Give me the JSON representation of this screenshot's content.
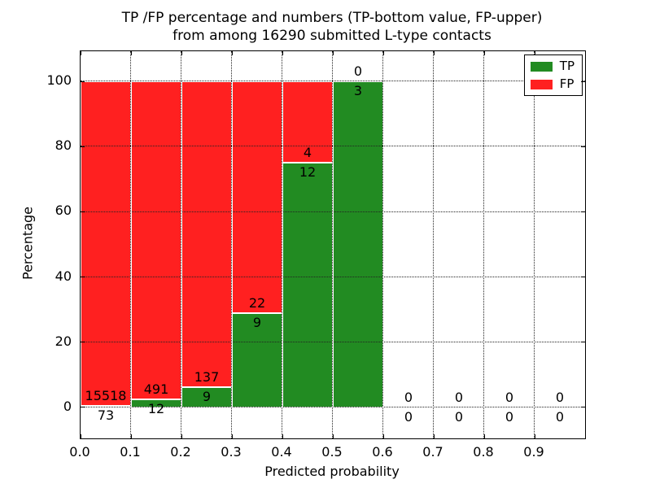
{
  "figure": {
    "title_line1": "TP /FP percentage and numbers (TP-bottom value, FP-upper)",
    "title_line2": "from among 16290 submitted L-type contacts"
  },
  "chart_data": {
    "type": "bar",
    "stacked": true,
    "title": "TP /FP percentage and numbers (TP-bottom value, FP-upper) from among 16290 submitted L-type contacts",
    "total_submitted": 16290,
    "xlabel": "Predicted probability",
    "ylabel": "Percentage",
    "xlim": [
      0.0,
      1.0
    ],
    "ylim": [
      -9.5,
      109.25
    ],
    "y_ticks": [
      0,
      20,
      40,
      60,
      80,
      100
    ],
    "y_tick_labels": [
      "0",
      "20",
      "40",
      "60",
      "80",
      "100"
    ],
    "x_ticks": [
      0.0,
      0.1,
      0.2,
      0.3,
      0.4,
      0.5,
      0.6,
      0.7,
      0.8,
      0.9
    ],
    "x_tick_labels": [
      "0.0",
      "0.1",
      "0.2",
      "0.3",
      "0.4",
      "0.5",
      "0.6",
      "0.7",
      "0.8",
      "0.9"
    ],
    "grid": "dotted",
    "colors": {
      "tp": "#228B22",
      "fp": "#FF2020"
    },
    "legend": {
      "position": "upper right",
      "entries": [
        {
          "label": "TP",
          "color": "#228B22"
        },
        {
          "label": "FP",
          "color": "#FF2020"
        }
      ]
    },
    "bins": [
      {
        "range": [
          0.0,
          0.1
        ],
        "tp_count": "73",
        "fp_count": "15518",
        "tp_pct": 0.47,
        "fp_pct": 99.53
      },
      {
        "range": [
          0.1,
          0.2
        ],
        "tp_count": "12",
        "fp_count": "491",
        "tp_pct": 2.39,
        "fp_pct": 97.61
      },
      {
        "range": [
          0.2,
          0.3
        ],
        "tp_count": "9",
        "fp_count": "137",
        "tp_pct": 6.16,
        "fp_pct": 93.84
      },
      {
        "range": [
          0.3,
          0.4
        ],
        "tp_count": "9",
        "fp_count": "22",
        "tp_pct": 29.03,
        "fp_pct": 70.97
      },
      {
        "range": [
          0.4,
          0.5
        ],
        "tp_count": "12",
        "fp_count": "4",
        "tp_pct": 75.0,
        "fp_pct": 25.0
      },
      {
        "range": [
          0.5,
          0.6
        ],
        "tp_count": "3",
        "fp_count": "0",
        "tp_pct": 100.0,
        "fp_pct": 0.0
      },
      {
        "range": [
          0.6,
          0.7
        ],
        "tp_count": "0",
        "fp_count": "0",
        "tp_pct": 0.0,
        "fp_pct": 0.0
      },
      {
        "range": [
          0.7,
          0.8
        ],
        "tp_count": "0",
        "fp_count": "0",
        "tp_pct": 0.0,
        "fp_pct": 0.0
      },
      {
        "range": [
          0.8,
          0.9
        ],
        "tp_count": "0",
        "fp_count": "0",
        "tp_pct": 0.0,
        "fp_pct": 0.0
      },
      {
        "range": [
          0.9,
          1.0
        ],
        "tp_count": "0",
        "fp_count": "0",
        "tp_pct": 0.0,
        "fp_pct": 0.0
      }
    ]
  }
}
